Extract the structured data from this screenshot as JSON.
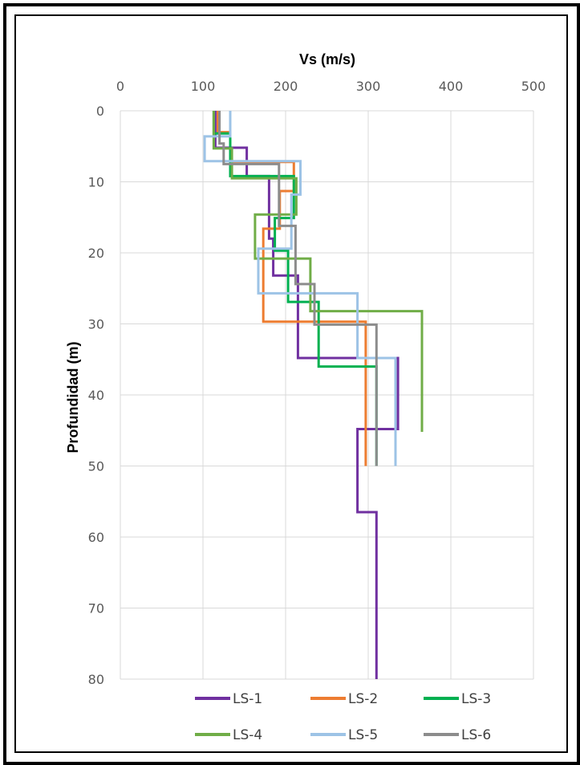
{
  "chart_data": {
    "type": "line",
    "title": "",
    "xlabel": "Vs (m/s)",
    "ylabel": "Profundidad (m)",
    "xlim": [
      0,
      500
    ],
    "ylim": [
      0,
      80
    ],
    "y_reversed": true,
    "x_axis_position": "top",
    "x_ticks": [
      0,
      100,
      200,
      300,
      400,
      500
    ],
    "y_ticks": [
      0,
      10,
      20,
      30,
      40,
      50,
      60,
      70,
      80
    ],
    "grid": true,
    "legend_position": "bottom",
    "series": [
      {
        "name": "LS-1",
        "color": "#7030A0",
        "points": [
          [
            115,
            0
          ],
          [
            115,
            5.2
          ],
          [
            153,
            5.2
          ],
          [
            153,
            9.2
          ],
          [
            180,
            9.2
          ],
          [
            180,
            18
          ],
          [
            185,
            18
          ],
          [
            185,
            23.2
          ],
          [
            215,
            23.2
          ],
          [
            215,
            34.8
          ],
          [
            336,
            34.8
          ],
          [
            336,
            44.8
          ],
          [
            287,
            44.8
          ],
          [
            287,
            56.5
          ],
          [
            310,
            56.5
          ],
          [
            310,
            80
          ]
        ]
      },
      {
        "name": "LS-2",
        "color": "#ED7D31",
        "points": [
          [
            118,
            0
          ],
          [
            118,
            3
          ],
          [
            133,
            3
          ],
          [
            133,
            7.2
          ],
          [
            210,
            7.2
          ],
          [
            210,
            11.3
          ],
          [
            193,
            11.3
          ],
          [
            193,
            16.6
          ],
          [
            173,
            16.6
          ],
          [
            173,
            29.7
          ],
          [
            297,
            29.7
          ],
          [
            297,
            50
          ]
        ]
      },
      {
        "name": "LS-3",
        "color": "#00B050",
        "points": [
          [
            113,
            0
          ],
          [
            113,
            3.2
          ],
          [
            133,
            3.2
          ],
          [
            133,
            9.2
          ],
          [
            210,
            9.2
          ],
          [
            210,
            15.1
          ],
          [
            187,
            15.1
          ],
          [
            187,
            19.7
          ],
          [
            203,
            19.7
          ],
          [
            203,
            26.9
          ],
          [
            240,
            26.9
          ],
          [
            240,
            36
          ],
          [
            310,
            36
          ],
          [
            310,
            50
          ]
        ]
      },
      {
        "name": "LS-4",
        "color": "#70AD47",
        "points": [
          [
            113,
            0
          ],
          [
            113,
            5.3
          ],
          [
            135,
            5.3
          ],
          [
            135,
            9.5
          ],
          [
            213,
            9.5
          ],
          [
            213,
            14.6
          ],
          [
            163,
            14.6
          ],
          [
            163,
            20.8
          ],
          [
            230,
            20.8
          ],
          [
            230,
            28.2
          ],
          [
            365,
            28.2
          ],
          [
            365,
            45.2
          ]
        ]
      },
      {
        "name": "LS-5",
        "color": "#9DC3E6",
        "points": [
          [
            133,
            0
          ],
          [
            133,
            3.6
          ],
          [
            102,
            3.6
          ],
          [
            102,
            7.1
          ],
          [
            218,
            7.1
          ],
          [
            218,
            11.8
          ],
          [
            207,
            11.8
          ],
          [
            207,
            19.4
          ],
          [
            167,
            19.4
          ],
          [
            167,
            25.7
          ],
          [
            287,
            25.7
          ],
          [
            287,
            34.8
          ],
          [
            333,
            34.8
          ],
          [
            333,
            50
          ]
        ]
      },
      {
        "name": "LS-6",
        "color": "#8C8C8C",
        "points": [
          [
            120,
            0
          ],
          [
            120,
            4.6
          ],
          [
            125,
            4.6
          ],
          [
            125,
            7.5
          ],
          [
            192,
            7.5
          ],
          [
            192,
            16.2
          ],
          [
            212,
            16.2
          ],
          [
            212,
            24.4
          ],
          [
            235,
            24.4
          ],
          [
            235,
            30.1
          ],
          [
            310,
            30.1
          ],
          [
            310,
            50
          ]
        ]
      }
    ]
  }
}
